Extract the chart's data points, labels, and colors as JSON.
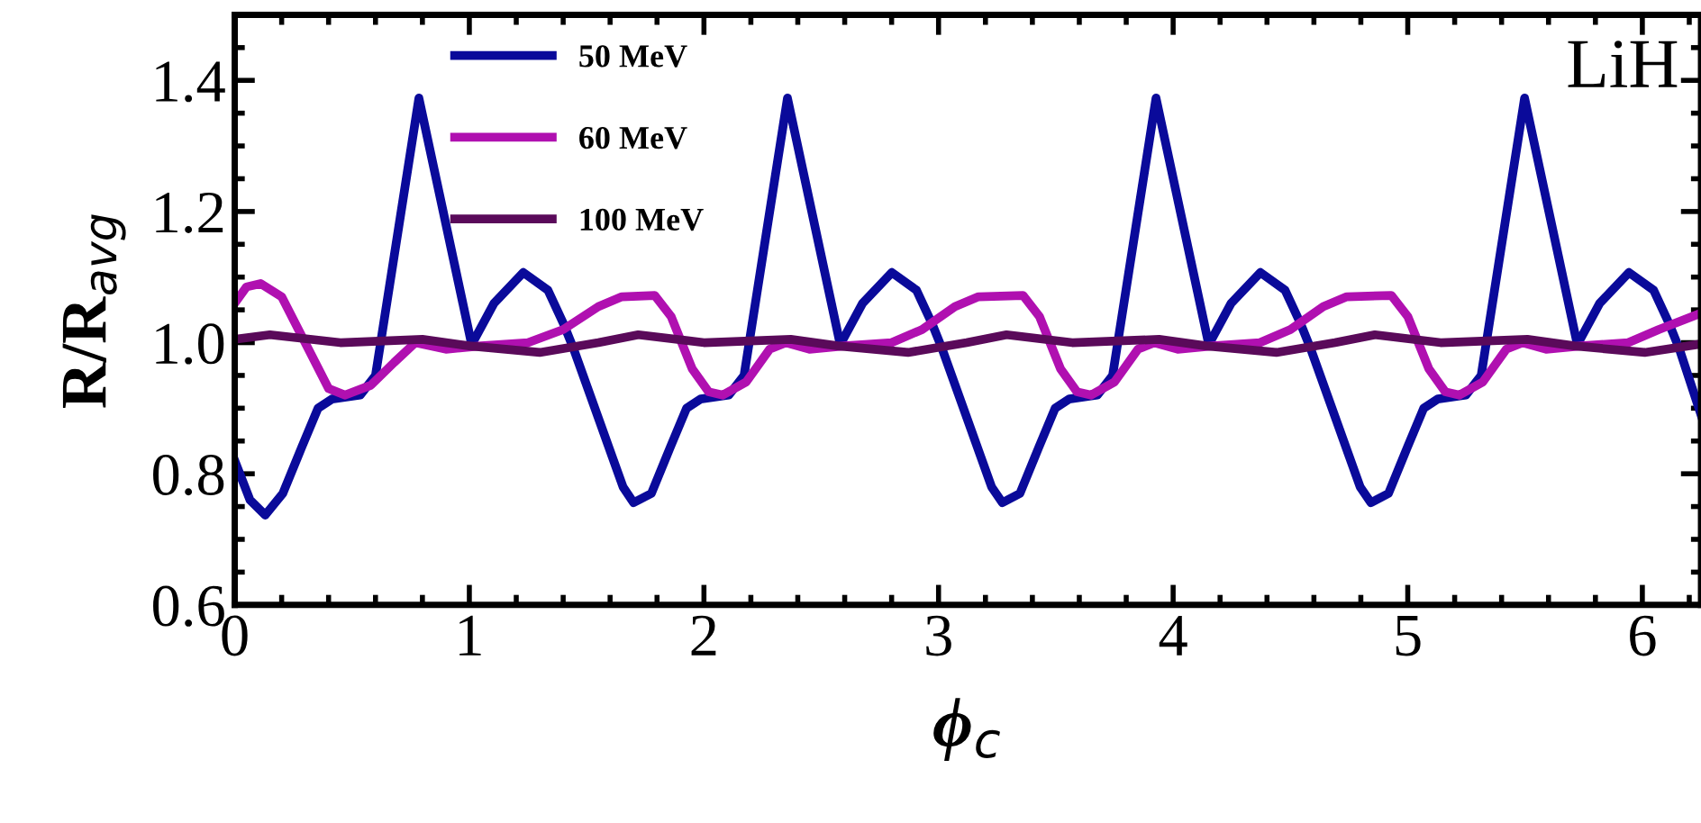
{
  "chart_data": {
    "type": "line",
    "xlabel": "ϕ$_{c}$",
    "ylabel": "R/R$_{avg}$",
    "annotations": [
      "LiH"
    ],
    "xlim": [
      0,
      6.25
    ],
    "ylim": [
      0.6,
      1.5
    ],
    "xticks": [
      0,
      1,
      2,
      3,
      4,
      5,
      6
    ],
    "yticks": [
      0.6,
      0.8,
      {
        "value": 1,
        "label": "1.0"
      },
      1.2,
      1.4
    ],
    "grid": false,
    "legend": "top left",
    "marker": "none",
    "line_style": "solid",
    "series": [
      {
        "name": "50 MeV",
        "color": "#0a0a9a",
        "x": [
          0,
          0.065,
          0.13,
          0.205,
          0.285,
          0.355,
          0.415,
          0.535,
          0.6,
          0.785,
          1.01,
          1.105,
          1.23,
          1.335,
          1.4,
          1.445,
          1.555,
          1.655,
          1.7,
          1.776,
          1.856,
          1.926,
          1.986,
          2.106,
          2.171,
          2.356,
          2.581,
          2.676,
          2.801,
          2.906,
          2.971,
          3.016,
          3.126,
          3.226,
          3.272,
          3.347,
          3.427,
          3.497,
          3.557,
          3.677,
          3.742,
          3.927,
          4.152,
          4.247,
          4.372,
          4.477,
          4.542,
          4.587,
          4.697,
          4.797,
          4.843,
          4.918,
          4.998,
          5.068,
          5.128,
          5.248,
          5.313,
          5.498,
          5.723,
          5.818,
          5.943,
          6.048,
          6.113,
          6.158,
          6.25
        ],
        "values": [
          0.82,
          0.76,
          0.737,
          0.77,
          0.84,
          0.9,
          0.914,
          0.92,
          0.95,
          1.373,
          0.997,
          1.06,
          1.107,
          1.08,
          1.03,
          0.99,
          0.88,
          0.78,
          0.756,
          0.77,
          0.84,
          0.9,
          0.914,
          0.92,
          0.95,
          1.373,
          0.997,
          1.06,
          1.107,
          1.08,
          1.03,
          0.99,
          0.88,
          0.78,
          0.756,
          0.77,
          0.84,
          0.9,
          0.914,
          0.92,
          0.95,
          1.373,
          0.997,
          1.06,
          1.107,
          1.08,
          1.03,
          0.99,
          0.88,
          0.78,
          0.756,
          0.77,
          0.84,
          0.9,
          0.914,
          0.92,
          0.95,
          1.373,
          0.997,
          1.06,
          1.107,
          1.08,
          1.03,
          0.99,
          0.89
        ]
      },
      {
        "name": "60 MeV",
        "color": "#b010b0",
        "x": [
          0,
          0.05,
          0.11,
          0.2,
          0.3,
          0.4,
          0.47,
          0.58,
          0.68,
          0.77,
          0.9,
          1.05,
          1.25,
          1.4,
          1.55,
          1.65,
          1.79,
          1.86,
          1.95,
          2.02,
          2.08,
          2.18,
          2.28,
          2.35,
          2.45,
          2.6,
          2.8,
          2.93,
          3.07,
          3.17,
          3.36,
          3.43,
          3.52,
          3.59,
          3.65,
          3.75,
          3.85,
          3.92,
          4.02,
          4.17,
          4.37,
          4.5,
          4.64,
          4.74,
          4.93,
          5.0,
          5.09,
          5.16,
          5.22,
          5.32,
          5.42,
          5.49,
          5.59,
          5.74,
          5.94,
          6.07,
          6.25
        ],
        "values": [
          1.06,
          1.085,
          1.09,
          1.07,
          1.0,
          0.93,
          0.92,
          0.935,
          0.97,
          1.0,
          0.99,
          0.995,
          1.0,
          1.02,
          1.055,
          1.07,
          1.072,
          1.04,
          0.96,
          0.925,
          0.92,
          0.94,
          0.99,
          1.0,
          0.99,
          0.995,
          1.0,
          1.02,
          1.055,
          1.07,
          1.072,
          1.04,
          0.96,
          0.925,
          0.92,
          0.94,
          0.99,
          1.0,
          0.99,
          0.995,
          1.0,
          1.02,
          1.055,
          1.07,
          1.072,
          1.04,
          0.96,
          0.925,
          0.92,
          0.94,
          0.99,
          1.0,
          0.99,
          0.995,
          1.0,
          1.02,
          1.045
        ]
      },
      {
        "name": "100 MeV",
        "color": "#5a0a5a",
        "x": [
          0,
          0.15,
          0.45,
          0.8,
          1.0,
          1.3,
          1.55,
          1.72,
          2.0,
          2.37,
          2.57,
          2.87,
          3.12,
          3.29,
          3.57,
          3.94,
          4.14,
          4.44,
          4.69,
          4.86,
          5.14,
          5.51,
          5.71,
          6.01,
          6.25
        ],
        "values": [
          1.005,
          1.012,
          1.0,
          1.005,
          0.995,
          0.985,
          1.0,
          1.012,
          1.0,
          1.005,
          0.995,
          0.985,
          1.0,
          1.012,
          1.0,
          1.005,
          0.995,
          0.985,
          1.0,
          1.012,
          1.0,
          1.005,
          0.995,
          0.985,
          0.998
        ]
      }
    ]
  }
}
